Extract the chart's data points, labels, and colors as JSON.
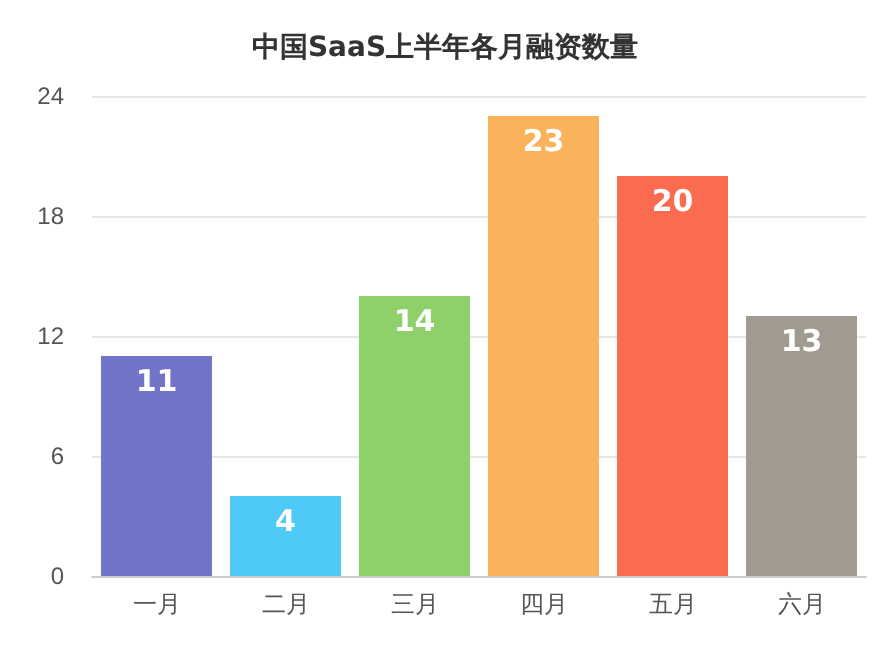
{
  "chart_data": {
    "type": "bar",
    "title": "中国SaaS上半年各月融资数量",
    "categories": [
      "一月",
      "二月",
      "三月",
      "四月",
      "五月",
      "六月"
    ],
    "values": [
      11,
      4,
      14,
      23,
      20,
      13
    ],
    "colors": [
      "#7274c9",
      "#4fcaf7",
      "#8ed16b",
      "#fbb35b",
      "#fb6b4f",
      "#a09a90"
    ],
    "ylim": [
      0,
      24
    ],
    "yticks": [
      0,
      6,
      12,
      18,
      24
    ],
    "grid": "y",
    "data_labels": true
  }
}
